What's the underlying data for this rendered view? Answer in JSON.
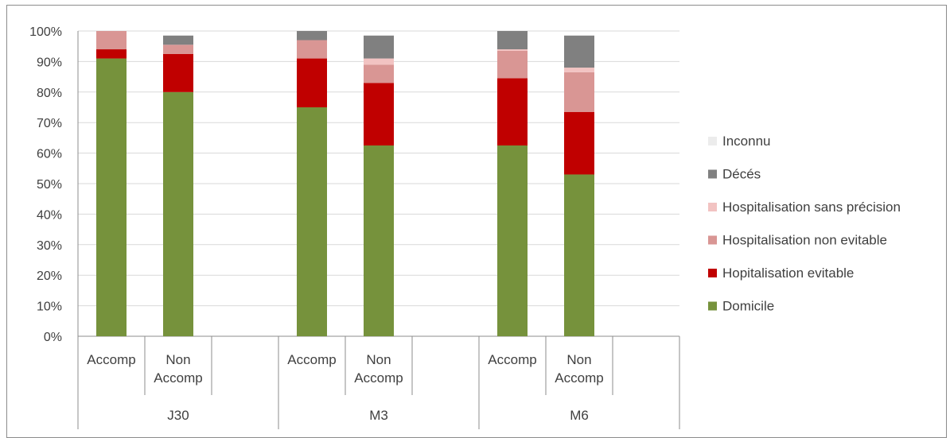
{
  "chart_data": {
    "type": "bar",
    "stacked": true,
    "y_axis": {
      "ticks": [
        "0%",
        "10%",
        "20%",
        "30%",
        "40%",
        "50%",
        "60%",
        "70%",
        "80%",
        "90%",
        "100%"
      ],
      "ylim": [
        0,
        100
      ],
      "unit": "%"
    },
    "categories": [
      "Accomp",
      "Non Accomp",
      "Accomp",
      "Non Accomp",
      "Accomp",
      "Non Accomp"
    ],
    "category_lines": [
      [
        "Accomp"
      ],
      [
        "Non",
        "Accomp"
      ],
      [
        "Accomp"
      ],
      [
        "Non",
        "Accomp"
      ],
      [
        "Accomp"
      ],
      [
        "Non",
        "Accomp"
      ]
    ],
    "groups": [
      "J30",
      "M3",
      "M6"
    ],
    "series": [
      {
        "name": "Domicile",
        "color": "#76923c",
        "values": [
          91,
          80,
          75,
          62.5,
          62.5,
          53
        ]
      },
      {
        "name": "Hopitalisation evitable",
        "color": "#c00000",
        "values": [
          3,
          12.5,
          16,
          20.5,
          22,
          20.5
        ]
      },
      {
        "name": "Hospitalisation non evitable",
        "color": "#d99694",
        "values": [
          6,
          3,
          6,
          6,
          9,
          13
        ]
      },
      {
        "name": "Hospitalisation sans précision",
        "color": "#f2c3c2",
        "values": [
          0,
          0,
          0,
          2,
          0.5,
          1.5
        ]
      },
      {
        "name": "Décés",
        "color": "#808080",
        "values": [
          0,
          3,
          3,
          7.5,
          6,
          10.5
        ]
      },
      {
        "name": "Inconnu",
        "color": "#ececec",
        "values": [
          0,
          0,
          0,
          0,
          0,
          0
        ]
      }
    ],
    "legend_order": [
      "Inconnu",
      "Décés",
      "Hospitalisation sans précision",
      "Hospitalisation non evitable",
      "Hopitalisation evitable",
      "Domicile"
    ],
    "legend_position": "right",
    "grid": true
  }
}
